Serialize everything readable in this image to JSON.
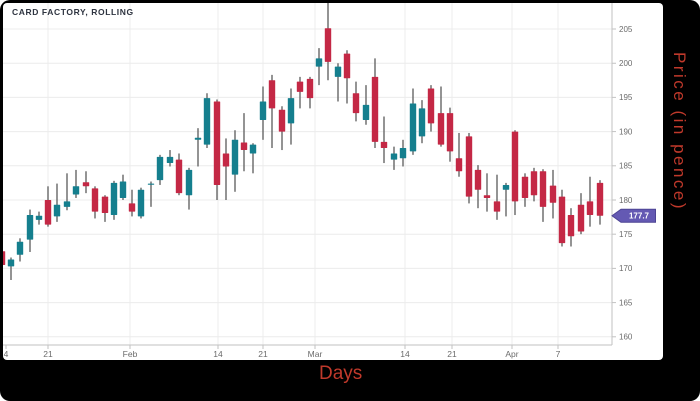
{
  "title": "CARD FACTORY, ROLLING",
  "price_tag": {
    "value": "177.7"
  },
  "colors": {
    "up": "#157f8e",
    "down": "#c42845",
    "wick": "#666666",
    "grid": "#ececec",
    "axis": "#c2c2c2",
    "tick_text": "#6b6b6b",
    "title_text": "#2e3440",
    "axis_title_red": "#c0392b",
    "tag_fill": "#6459b3",
    "tag_border": "#4d4494",
    "tag_text": "#ffffff",
    "frame": "#000000",
    "panel": "#ffffff"
  },
  "chart_data": {
    "type": "candlestick",
    "title": "CARD FACTORY, ROLLING",
    "xlabel": "Days",
    "ylabel": "Price (in pence)",
    "ylim": [
      158.8,
      208.8
    ],
    "grid": true,
    "legend": "none",
    "y_ticks": [
      205,
      200,
      195,
      190,
      185,
      180,
      175,
      170,
      165,
      160
    ],
    "x_ticks": [
      {
        "label": "4",
        "x": 6
      },
      {
        "label": "21",
        "x": 48
      },
      {
        "label": "Feb",
        "x": 130
      },
      {
        "label": "14",
        "x": 218
      },
      {
        "label": "21",
        "x": 263
      },
      {
        "label": "Mar",
        "x": 315
      },
      {
        "label": "14",
        "x": 405
      },
      {
        "label": "21",
        "x": 452
      },
      {
        "label": "Apr",
        "x": 512
      },
      {
        "label": "7",
        "x": 558
      }
    ],
    "last_price": 177.7,
    "columns": [
      "x",
      "open",
      "high",
      "low",
      "close"
    ],
    "candles": [
      [
        2,
        172.5,
        172.8,
        166.9,
        170.5
      ],
      [
        11,
        170.3,
        171.6,
        168.3,
        171.3
      ],
      [
        20,
        172.0,
        174.4,
        171.0,
        173.9
      ],
      [
        30,
        174.2,
        178.6,
        172.4,
        177.8
      ],
      [
        39,
        177.1,
        178.3,
        176.4,
        177.7
      ],
      [
        48,
        180.0,
        182.0,
        176.1,
        176.4
      ],
      [
        57,
        177.6,
        182.4,
        176.8,
        179.3
      ],
      [
        67,
        179.0,
        183.9,
        178.5,
        179.8
      ],
      [
        76,
        180.8,
        184.4,
        180.3,
        182.0
      ],
      [
        86,
        182.6,
        184.2,
        181.0,
        182.0
      ],
      [
        95,
        181.7,
        182.0,
        177.3,
        178.3
      ],
      [
        105,
        180.5,
        180.7,
        176.8,
        178.1
      ],
      [
        114,
        177.8,
        182.8,
        177.1,
        182.5
      ],
      [
        123,
        180.3,
        183.7,
        180.0,
        182.7
      ],
      [
        132,
        179.5,
        181.5,
        177.6,
        178.3
      ],
      [
        141,
        177.6,
        181.8,
        177.3,
        181.5
      ],
      [
        151,
        182.3,
        182.7,
        179.0,
        182.4
      ],
      [
        160,
        182.9,
        186.6,
        182.2,
        186.3
      ],
      [
        170,
        185.4,
        187.3,
        184.9,
        186.3
      ],
      [
        179,
        185.9,
        186.8,
        180.7,
        181.0
      ],
      [
        189,
        180.7,
        184.7,
        178.6,
        184.4
      ],
      [
        198,
        188.8,
        190.5,
        184.9,
        189.1
      ],
      [
        207,
        188.1,
        195.6,
        187.6,
        194.9
      ],
      [
        217,
        194.4,
        194.7,
        180.0,
        182.2
      ],
      [
        226,
        186.8,
        189.0,
        180.0,
        184.9
      ],
      [
        235,
        183.7,
        190.2,
        181.2,
        188.8
      ],
      [
        244,
        188.4,
        192.7,
        184.2,
        187.3
      ],
      [
        253,
        186.8,
        188.3,
        183.9,
        188.1
      ],
      [
        263,
        191.7,
        196.6,
        188.8,
        194.4
      ],
      [
        272,
        197.5,
        198.3,
        187.6,
        193.4
      ],
      [
        282,
        193.2,
        193.7,
        187.3,
        190.0
      ],
      [
        291,
        191.2,
        196.3,
        188.1,
        194.9
      ],
      [
        300,
        197.3,
        198.0,
        193.4,
        195.8
      ],
      [
        310,
        197.7,
        198.0,
        193.4,
        194.9
      ],
      [
        319,
        199.5,
        202.2,
        196.8,
        200.7
      ],
      [
        328,
        205.1,
        208.8,
        197.5,
        200.2
      ],
      [
        338,
        198.0,
        200.0,
        194.4,
        199.5
      ],
      [
        347,
        201.4,
        201.9,
        194.1,
        197.8
      ],
      [
        356,
        195.6,
        197.3,
        191.5,
        192.7
      ],
      [
        366,
        191.7,
        196.8,
        191.0,
        193.9
      ],
      [
        375,
        198.0,
        200.7,
        187.6,
        188.5
      ],
      [
        384,
        188.5,
        192.2,
        185.4,
        187.6
      ],
      [
        394,
        185.9,
        187.8,
        184.4,
        186.8
      ],
      [
        403,
        186.1,
        188.8,
        184.9,
        187.6
      ],
      [
        413,
        187.1,
        196.3,
        186.6,
        194.1
      ],
      [
        422,
        189.3,
        194.6,
        188.3,
        193.4
      ],
      [
        431,
        196.3,
        196.8,
        190.0,
        191.2
      ],
      [
        441,
        192.7,
        196.6,
        187.8,
        188.1
      ],
      [
        450,
        192.7,
        193.5,
        185.6,
        187.1
      ],
      [
        459,
        186.1,
        189.8,
        183.4,
        184.2
      ],
      [
        469,
        189.3,
        189.8,
        179.5,
        180.5
      ],
      [
        478,
        184.4,
        185.1,
        178.8,
        181.5
      ],
      [
        487,
        180.7,
        183.9,
        178.3,
        180.3
      ],
      [
        497,
        179.8,
        183.7,
        177.1,
        178.3
      ],
      [
        506,
        181.5,
        182.5,
        177.6,
        182.2
      ],
      [
        515,
        190.0,
        190.2,
        177.8,
        179.8
      ],
      [
        525,
        183.4,
        183.9,
        179.0,
        180.3
      ],
      [
        534,
        184.2,
        184.7,
        179.8,
        180.7
      ],
      [
        543,
        184.2,
        184.5,
        176.8,
        179.0
      ],
      [
        553,
        182.1,
        184.4,
        177.3,
        179.6
      ],
      [
        562,
        180.5,
        181.5,
        173.2,
        173.7
      ],
      [
        571,
        177.8,
        178.8,
        173.2,
        174.7
      ],
      [
        581,
        179.3,
        181.0,
        175.0,
        175.4
      ],
      [
        590,
        179.8,
        183.4,
        176.1,
        177.8
      ],
      [
        600,
        182.5,
        182.9,
        176.4,
        177.7
      ]
    ]
  }
}
